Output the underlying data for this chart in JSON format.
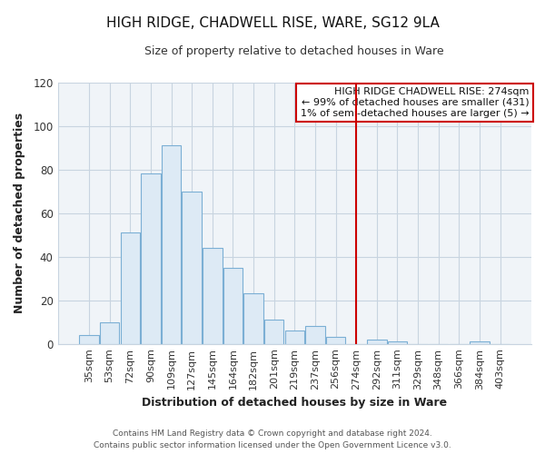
{
  "title": "HIGH RIDGE, CHADWELL RISE, WARE, SG12 9LA",
  "subtitle": "Size of property relative to detached houses in Ware",
  "xlabel": "Distribution of detached houses by size in Ware",
  "ylabel": "Number of detached properties",
  "footer_line1": "Contains HM Land Registry data © Crown copyright and database right 2024.",
  "footer_line2": "Contains public sector information licensed under the Open Government Licence v3.0.",
  "bar_labels": [
    "35sqm",
    "53sqm",
    "72sqm",
    "90sqm",
    "109sqm",
    "127sqm",
    "145sqm",
    "164sqm",
    "182sqm",
    "201sqm",
    "219sqm",
    "237sqm",
    "256sqm",
    "274sqm",
    "292sqm",
    "311sqm",
    "329sqm",
    "348sqm",
    "366sqm",
    "384sqm",
    "403sqm"
  ],
  "bar_heights": [
    4,
    10,
    51,
    78,
    91,
    70,
    44,
    35,
    23,
    11,
    6,
    8,
    3,
    0,
    2,
    1,
    0,
    0,
    0,
    1,
    0
  ],
  "bar_color": "#ddeaf5",
  "bar_edge_color": "#7bafd4",
  "highlight_line_x_label": "274sqm",
  "highlight_line_color": "#cc0000",
  "annotation_title": "HIGH RIDGE CHADWELL RISE: 274sqm",
  "annotation_line1": "← 99% of detached houses are smaller (431)",
  "annotation_line2": "1% of semi-detached houses are larger (5) →",
  "annotation_box_facecolor": "#ffffff",
  "annotation_box_edgecolor": "#cc0000",
  "ylim": [
    0,
    120
  ],
  "yticks": [
    0,
    20,
    40,
    60,
    80,
    100,
    120
  ],
  "fig_bg_color": "#ffffff",
  "plot_bg_color": "#f0f4f8",
  "grid_color": "#c8d4e0",
  "title_fontsize": 11,
  "subtitle_fontsize": 9,
  "axis_label_fontsize": 9,
  "tick_fontsize": 8,
  "footer_fontsize": 6.5
}
